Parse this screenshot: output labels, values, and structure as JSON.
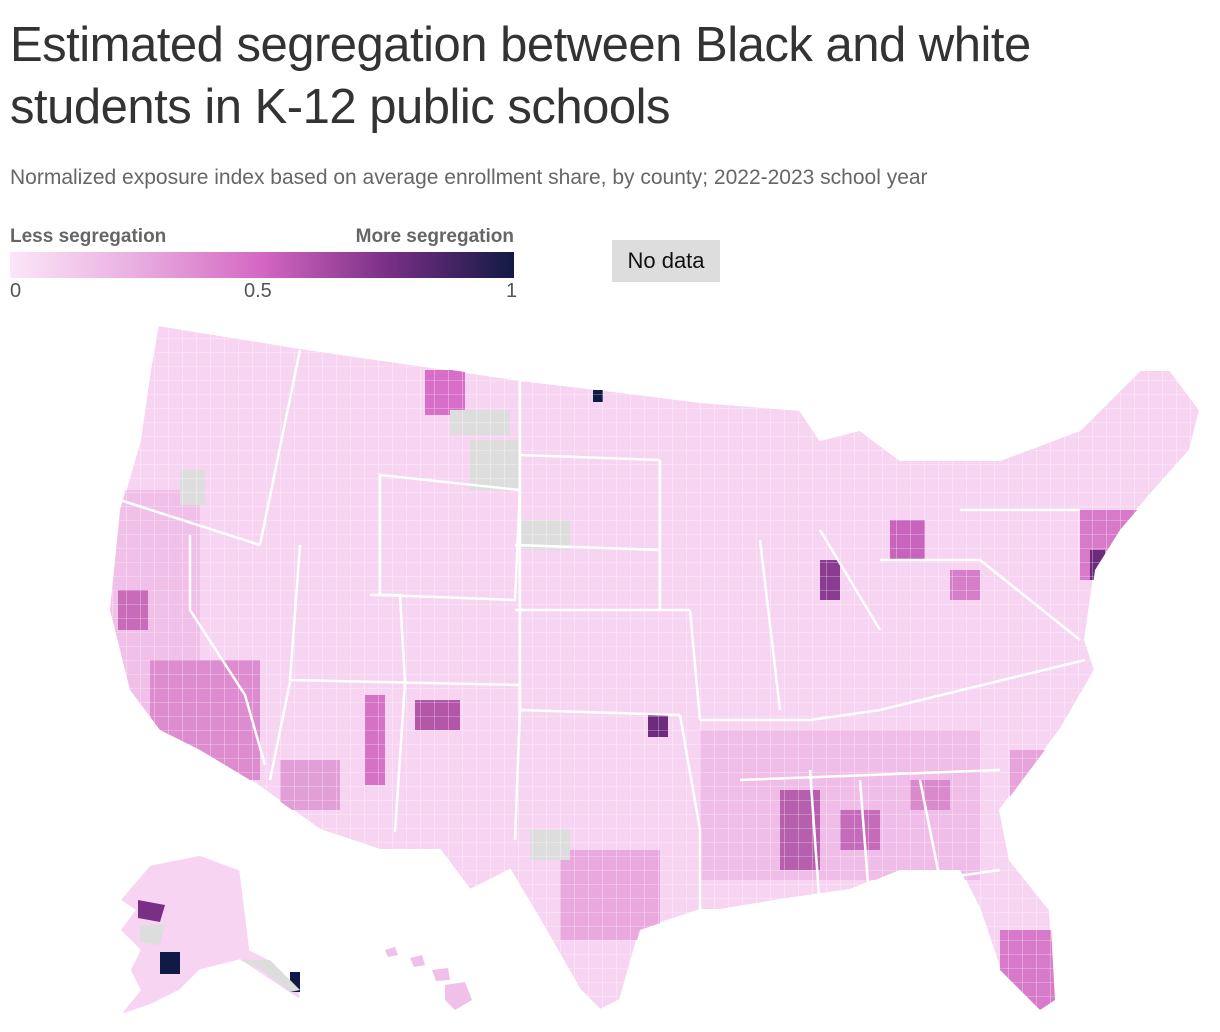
{
  "title": "Estimated segregation between Black and white students in K-12 public schools",
  "subtitle": "Normalized exposure index based on average enrollment share, by county; 2022-2023 school year",
  "legend": {
    "low_label": "Less segregation",
    "high_label": "More segregation",
    "ticks": [
      "0",
      "0.5",
      "1"
    ],
    "tick_values": [
      0,
      0.5,
      1
    ],
    "no_data_label": "No data",
    "scale_colors": [
      "#fce6f8",
      "#e9aee0",
      "#d467c2",
      "#7a2f86",
      "#111a44"
    ],
    "no_data_color": "#dddddd"
  },
  "map": {
    "type": "choropleth",
    "geography": "US counties (contiguous US, Alaska, Hawaii)",
    "value_range": [
      0,
      1
    ],
    "highlighted_regions": [
      {
        "name": "North Dakota (north)",
        "level": 1.0
      },
      {
        "name": "Alaska (southwest)",
        "level": 1.0
      },
      {
        "name": "Alaska (southeast)",
        "level": 1.0
      },
      {
        "name": "Oklahoma (northeast)",
        "level": 0.75
      },
      {
        "name": "Chicago area",
        "level": 0.75
      },
      {
        "name": "Mississippi Delta",
        "level": 0.7
      },
      {
        "name": "Southern California",
        "level": 0.5
      }
    ]
  }
}
